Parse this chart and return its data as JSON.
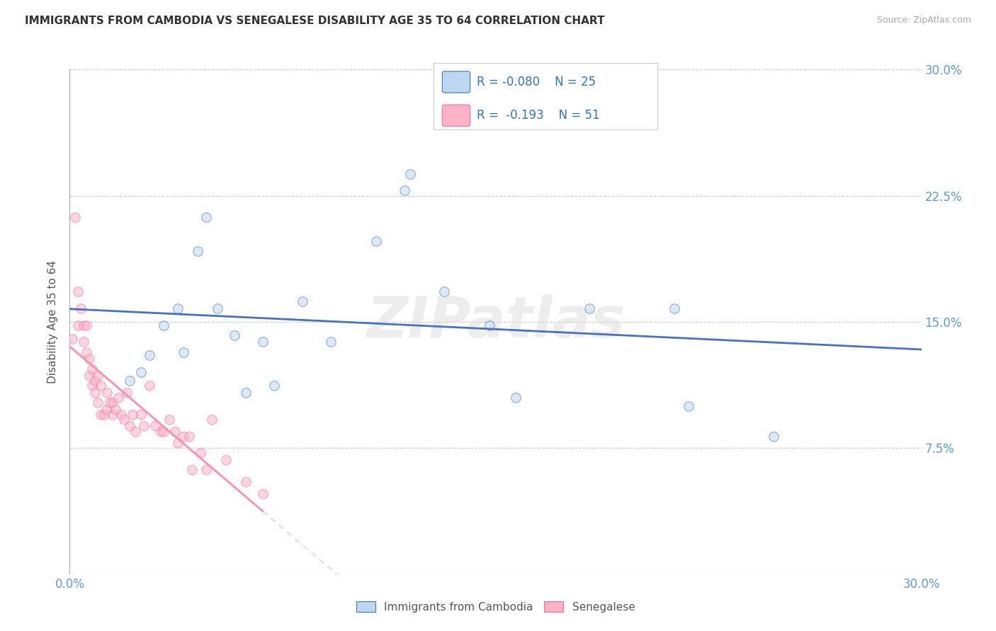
{
  "title": "IMMIGRANTS FROM CAMBODIA VS SENEGALESE DISABILITY AGE 35 TO 64 CORRELATION CHART",
  "source": "Source: ZipAtlas.com",
  "ylabel": "Disability Age 35 to 64",
  "xmin": 0.0,
  "xmax": 0.3,
  "ymin": 0.0,
  "ymax": 0.3,
  "ytick_vals": [
    0.0,
    0.075,
    0.15,
    0.225,
    0.3
  ],
  "ytick_labels_right": [
    "",
    "7.5%",
    "15.0%",
    "22.5%",
    "30.0%"
  ],
  "xtick_vals": [
    0.0,
    0.05,
    0.1,
    0.15,
    0.2,
    0.25,
    0.3
  ],
  "xtick_labels": [
    "0.0%",
    "",
    "",
    "",
    "",
    "",
    "30.0%"
  ],
  "cambodia_fill": "#BDD7EE",
  "cambodia_edge": "#4472C4",
  "senegal_fill": "#FFB3C6",
  "senegal_edge": "#FF69A0",
  "trend_cambodia_color": "#4472C4",
  "trend_senegal_color": "#FF8FAB",
  "watermark": "ZIPatlas",
  "legend_R_cambodia": "-0.080",
  "legend_N_cambodia": "25",
  "legend_R_senegal": "-0.193",
  "legend_N_senegal": "51",
  "cambodia_x": [
    0.021,
    0.025,
    0.028,
    0.033,
    0.038,
    0.04,
    0.045,
    0.048,
    0.052,
    0.058,
    0.062,
    0.068,
    0.072,
    0.082,
    0.092,
    0.108,
    0.118,
    0.12,
    0.132,
    0.148,
    0.157,
    0.183,
    0.213,
    0.218,
    0.248
  ],
  "cambodia_y": [
    0.115,
    0.12,
    0.13,
    0.148,
    0.158,
    0.132,
    0.192,
    0.212,
    0.158,
    0.142,
    0.108,
    0.138,
    0.112,
    0.162,
    0.138,
    0.198,
    0.228,
    0.238,
    0.168,
    0.148,
    0.105,
    0.158,
    0.158,
    0.1,
    0.082
  ],
  "senegal_x": [
    0.001,
    0.002,
    0.003,
    0.003,
    0.004,
    0.005,
    0.005,
    0.006,
    0.006,
    0.007,
    0.007,
    0.008,
    0.008,
    0.009,
    0.009,
    0.01,
    0.01,
    0.011,
    0.011,
    0.012,
    0.013,
    0.013,
    0.014,
    0.015,
    0.015,
    0.016,
    0.017,
    0.018,
    0.019,
    0.02,
    0.021,
    0.022,
    0.023,
    0.025,
    0.026,
    0.028,
    0.03,
    0.032,
    0.033,
    0.035,
    0.037,
    0.038,
    0.04,
    0.042,
    0.043,
    0.046,
    0.048,
    0.05,
    0.055,
    0.062,
    0.068
  ],
  "senegal_y": [
    0.14,
    0.212,
    0.168,
    0.148,
    0.158,
    0.148,
    0.138,
    0.132,
    0.148,
    0.128,
    0.118,
    0.122,
    0.112,
    0.115,
    0.108,
    0.102,
    0.118,
    0.112,
    0.095,
    0.095,
    0.108,
    0.098,
    0.102,
    0.102,
    0.095,
    0.098,
    0.105,
    0.095,
    0.092,
    0.108,
    0.088,
    0.095,
    0.085,
    0.095,
    0.088,
    0.112,
    0.088,
    0.085,
    0.085,
    0.092,
    0.085,
    0.078,
    0.082,
    0.082,
    0.062,
    0.072,
    0.062,
    0.092,
    0.068,
    0.055,
    0.048
  ],
  "background_color": "#FFFFFF",
  "grid_color": "#CCCCCC",
  "tick_color": "#5B9BD5",
  "marker_size": 95,
  "marker_alpha": 0.55,
  "trend_linewidth": 2.0
}
